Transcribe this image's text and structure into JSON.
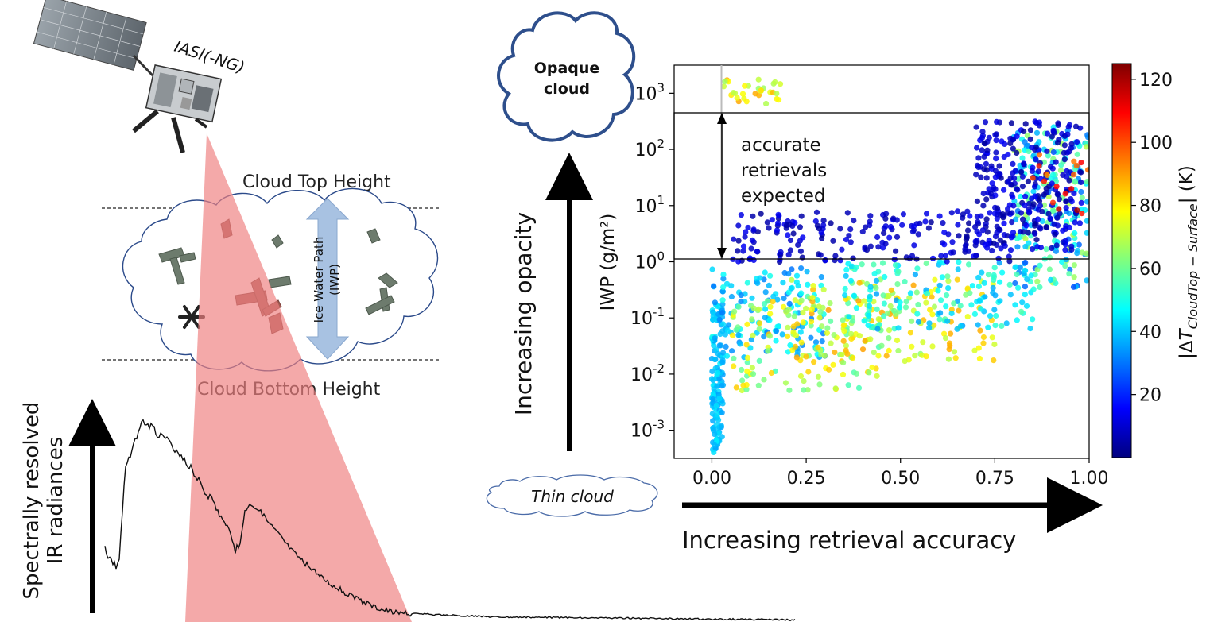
{
  "labels": {
    "instrument": "IASI(-NG)",
    "cloud_top": "Cloud Top Height",
    "cloud_bottom": "Cloud Bottom Height",
    "iwp_arrow_line1": "Ice Water Path",
    "iwp_arrow_line2": "(IWP)",
    "spectral_line1": "Spectrally resolved",
    "spectral_line2": "IR radiances",
    "opaque_line1": "Opaque",
    "opaque_line2": "cloud",
    "thin_cloud": "Thin cloud",
    "increasing_opacity": "Increasing opacity",
    "increasing_accuracy": "Increasing retrieval accuracy",
    "band_line1": "accurate",
    "band_line2": "retrievals",
    "band_line3": "expected"
  },
  "chart_data": {
    "type": "scatter",
    "xlabel": "",
    "ylabel": "IWP (g/m²)",
    "xlim": [
      -0.1,
      1.0
    ],
    "ylim_log10": [
      -3.5,
      3.5
    ],
    "yscale": "log",
    "x_ticks": [
      "0.00",
      "0.25",
      "0.50",
      "0.75",
      "1.00"
    ],
    "x_tick_values": [
      0,
      0.25,
      0.5,
      0.75,
      1.0
    ],
    "y_tick_exponents": [
      "-3",
      "-2",
      "-1",
      "0",
      "1",
      "2",
      "3"
    ],
    "y_tick_values_log10": [
      -3,
      -2,
      -1,
      0,
      1,
      2,
      3
    ],
    "band_iwp_range": [
      1,
      400
    ],
    "colorbar": {
      "label": "|ΔT_CloudTop - Surface| (K)",
      "range": [
        0,
        125
      ],
      "ticks": [
        "20",
        "40",
        "60",
        "80",
        "100",
        "120"
      ],
      "tick_values": [
        20,
        40,
        60,
        80,
        100,
        120
      ],
      "colormap": "jet"
    },
    "clusters": [
      {
        "x": [
          0.0,
          0.03
        ],
        "log_iwp": [
          -3.4,
          -0.7
        ],
        "dT": [
          35,
          45
        ],
        "n": 130
      },
      {
        "x": [
          0.0,
          0.3
        ],
        "log_iwp": [
          -1.7,
          -0.1
        ],
        "dT": [
          30,
          50
        ],
        "n": 140
      },
      {
        "x": [
          0.05,
          0.45
        ],
        "log_iwp": [
          -2.3,
          -0.6
        ],
        "dT": [
          55,
          85
        ],
        "n": 120
      },
      {
        "x": [
          0.2,
          0.75
        ],
        "log_iwp": [
          -1.8,
          -0.3
        ],
        "dT": [
          60,
          90
        ],
        "n": 160
      },
      {
        "x": [
          0.35,
          0.85
        ],
        "log_iwp": [
          -1.2,
          0.0
        ],
        "dT": [
          35,
          60
        ],
        "n": 150
      },
      {
        "x": [
          0.8,
          1.0
        ],
        "log_iwp": [
          -0.6,
          2.4
        ],
        "dT": [
          25,
          70
        ],
        "n": 220
      },
      {
        "x": [
          0.05,
          0.8
        ],
        "log_iwp": [
          0.0,
          0.9
        ],
        "dT": [
          3,
          15
        ],
        "n": 190
      },
      {
        "x": [
          0.7,
          0.98
        ],
        "log_iwp": [
          0.2,
          2.5
        ],
        "dT": [
          3,
          15
        ],
        "n": 280
      },
      {
        "x": [
          0.85,
          1.0
        ],
        "log_iwp": [
          0.8,
          2.3
        ],
        "dT": [
          90,
          120
        ],
        "n": 18
      },
      {
        "x": [
          0.02,
          0.2
        ],
        "log_iwp": [
          2.8,
          3.25
        ],
        "dT": [
          65,
          90
        ],
        "n": 30
      }
    ]
  }
}
